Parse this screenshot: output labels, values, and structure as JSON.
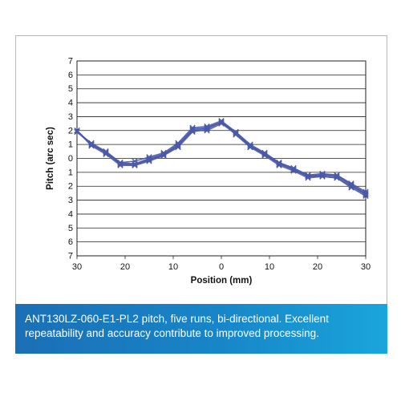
{
  "chart_data": {
    "type": "line",
    "title": "",
    "xlabel": "Position (mm)",
    "ylabel": "Pitch (arc sec)",
    "x_tick_labels": [
      "30",
      "20",
      "10",
      "0",
      "10",
      "20",
      "30"
    ],
    "y_tick_labels": [
      "7",
      "6",
      "5",
      "4",
      "3",
      "2",
      "1",
      "0",
      "1",
      "2",
      "3",
      "4",
      "5",
      "6",
      "7"
    ],
    "xlim": [
      -30,
      30
    ],
    "ylim": [
      -7,
      7
    ],
    "grid": "horizontal",
    "marker": "x",
    "line_color": "#4a5aa8",
    "series": [
      {
        "x": [
          -30,
          -27,
          -24,
          -21,
          -18,
          -15,
          -12,
          -9,
          -6,
          -3,
          0,
          3,
          6,
          9,
          12,
          15,
          18,
          21,
          24,
          27,
          30
        ],
        "values": [
          2.0,
          1.0,
          0.4,
          -0.4,
          -0.4,
          -0.1,
          0.3,
          0.9,
          2.0,
          2.2,
          2.6,
          1.8,
          0.9,
          0.3,
          -0.4,
          -0.8,
          -1.3,
          -1.2,
          -1.3,
          -1.9,
          -2.6
        ]
      },
      {
        "x": [
          -30,
          -27,
          -24,
          -21,
          -18,
          -15,
          -12,
          -9,
          -6,
          -3,
          0,
          3,
          6,
          9,
          12,
          15,
          18,
          21,
          24,
          27,
          30
        ],
        "values": [
          1.9,
          1.1,
          0.5,
          -0.3,
          -0.2,
          0.1,
          0.4,
          1.1,
          2.2,
          2.3,
          2.7,
          1.9,
          1.0,
          0.4,
          -0.3,
          -0.7,
          -1.2,
          -1.1,
          -1.2,
          -1.8,
          -2.4
        ]
      },
      {
        "x": [
          -30,
          -27,
          -24,
          -21,
          -18,
          -15,
          -12,
          -9,
          -6,
          -3,
          0,
          3,
          6,
          9,
          12,
          15,
          18,
          21,
          24,
          27,
          30
        ],
        "values": [
          2.0,
          1.0,
          0.4,
          -0.4,
          -0.5,
          -0.1,
          0.2,
          0.8,
          1.9,
          2.1,
          2.6,
          1.7,
          0.8,
          0.3,
          -0.4,
          -0.8,
          -1.3,
          -1.3,
          -1.4,
          -2.0,
          -2.6
        ]
      },
      {
        "x": [
          -30,
          -27,
          -24,
          -21,
          -18,
          -15,
          -12,
          -9,
          -6,
          -3,
          0,
          3,
          6,
          9,
          12,
          15,
          18,
          21,
          24,
          27,
          30
        ],
        "values": [
          1.9,
          1.0,
          0.5,
          -0.3,
          -0.4,
          0.0,
          0.3,
          1.0,
          2.1,
          2.2,
          2.6,
          1.9,
          0.9,
          0.4,
          -0.3,
          -0.7,
          -1.2,
          -1.2,
          -1.2,
          -1.9,
          -2.5
        ]
      },
      {
        "x": [
          -30,
          -27,
          -24,
          -21,
          -18,
          -15,
          -12,
          -9,
          -6,
          -3,
          0,
          3,
          6,
          9,
          12,
          15,
          18,
          21,
          24,
          27,
          30
        ],
        "values": [
          2.0,
          0.9,
          0.3,
          -0.5,
          -0.5,
          -0.2,
          0.2,
          0.9,
          2.0,
          2.0,
          2.5,
          1.8,
          0.8,
          0.2,
          -0.5,
          -0.9,
          -1.4,
          -1.3,
          -1.4,
          -2.1,
          -2.7
        ]
      }
    ]
  },
  "caption": {
    "line1": "ANT130LZ-060-E1-PL2 pitch, five runs, bi-directional. Excellent",
    "line2": "repeatability and accuracy contribute to improved processing."
  }
}
